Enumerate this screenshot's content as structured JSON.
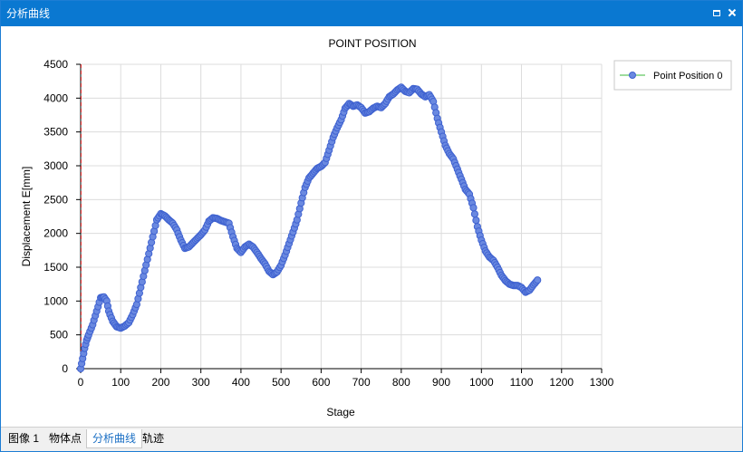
{
  "window": {
    "title": "分析曲线"
  },
  "tabs": [
    {
      "label": "图像 1",
      "active": false
    },
    {
      "label": "物体点",
      "active": false
    },
    {
      "label": "分析曲线",
      "active": true
    },
    {
      "label": "轨迹",
      "active": false
    }
  ],
  "chart_data": {
    "type": "scatter",
    "title": "POINT POSITION",
    "xlabel": "Stage",
    "ylabel": "Displacement E[mm]",
    "xlim": [
      0,
      1300
    ],
    "ylim": [
      0,
      4500
    ],
    "xticks": [
      0,
      100,
      200,
      300,
      400,
      500,
      600,
      700,
      800,
      900,
      1000,
      1100,
      1200,
      1300
    ],
    "yticks": [
      0,
      500,
      1000,
      1500,
      2000,
      2500,
      3000,
      3500,
      4000,
      4500
    ],
    "grid": true,
    "legend": "top-right",
    "series": [
      {
        "name": "Point Position 0",
        "color": "#3f62d0",
        "points": [
          [
            0,
            0
          ],
          [
            5,
            150
          ],
          [
            10,
            300
          ],
          [
            15,
            420
          ],
          [
            20,
            500
          ],
          [
            30,
            650
          ],
          [
            40,
            850
          ],
          [
            50,
            1050
          ],
          [
            58,
            1060
          ],
          [
            65,
            1000
          ],
          [
            70,
            850
          ],
          [
            80,
            700
          ],
          [
            90,
            620
          ],
          [
            100,
            600
          ],
          [
            110,
            630
          ],
          [
            120,
            680
          ],
          [
            130,
            800
          ],
          [
            140,
            950
          ],
          [
            150,
            1200
          ],
          [
            160,
            1450
          ],
          [
            170,
            1700
          ],
          [
            180,
            1950
          ],
          [
            190,
            2200
          ],
          [
            200,
            2290
          ],
          [
            210,
            2260
          ],
          [
            220,
            2200
          ],
          [
            230,
            2150
          ],
          [
            240,
            2050
          ],
          [
            250,
            1900
          ],
          [
            260,
            1780
          ],
          [
            270,
            1800
          ],
          [
            280,
            1860
          ],
          [
            290,
            1920
          ],
          [
            300,
            1980
          ],
          [
            310,
            2050
          ],
          [
            320,
            2180
          ],
          [
            330,
            2230
          ],
          [
            340,
            2220
          ],
          [
            350,
            2190
          ],
          [
            360,
            2170
          ],
          [
            370,
            2150
          ],
          [
            380,
            1950
          ],
          [
            390,
            1780
          ],
          [
            400,
            1720
          ],
          [
            410,
            1800
          ],
          [
            420,
            1840
          ],
          [
            430,
            1800
          ],
          [
            440,
            1720
          ],
          [
            450,
            1630
          ],
          [
            460,
            1550
          ],
          [
            470,
            1440
          ],
          [
            480,
            1390
          ],
          [
            490,
            1430
          ],
          [
            500,
            1530
          ],
          [
            510,
            1680
          ],
          [
            520,
            1850
          ],
          [
            530,
            2020
          ],
          [
            540,
            2200
          ],
          [
            550,
            2450
          ],
          [
            560,
            2680
          ],
          [
            570,
            2820
          ],
          [
            580,
            2890
          ],
          [
            590,
            2960
          ],
          [
            600,
            2990
          ],
          [
            610,
            3050
          ],
          [
            620,
            3230
          ],
          [
            630,
            3420
          ],
          [
            640,
            3560
          ],
          [
            650,
            3680
          ],
          [
            660,
            3850
          ],
          [
            670,
            3920
          ],
          [
            680,
            3880
          ],
          [
            690,
            3900
          ],
          [
            700,
            3860
          ],
          [
            710,
            3780
          ],
          [
            720,
            3800
          ],
          [
            730,
            3850
          ],
          [
            740,
            3880
          ],
          [
            750,
            3860
          ],
          [
            760,
            3920
          ],
          [
            770,
            4020
          ],
          [
            780,
            4060
          ],
          [
            790,
            4120
          ],
          [
            800,
            4160
          ],
          [
            810,
            4100
          ],
          [
            820,
            4080
          ],
          [
            830,
            4140
          ],
          [
            840,
            4130
          ],
          [
            850,
            4060
          ],
          [
            860,
            4020
          ],
          [
            870,
            4050
          ],
          [
            880,
            3950
          ],
          [
            890,
            3700
          ],
          [
            900,
            3500
          ],
          [
            910,
            3300
          ],
          [
            920,
            3180
          ],
          [
            930,
            3100
          ],
          [
            940,
            2950
          ],
          [
            950,
            2800
          ],
          [
            960,
            2650
          ],
          [
            970,
            2580
          ],
          [
            980,
            2380
          ],
          [
            990,
            2100
          ],
          [
            1000,
            1900
          ],
          [
            1010,
            1740
          ],
          [
            1020,
            1650
          ],
          [
            1030,
            1600
          ],
          [
            1040,
            1500
          ],
          [
            1050,
            1380
          ],
          [
            1060,
            1300
          ],
          [
            1070,
            1250
          ],
          [
            1080,
            1230
          ],
          [
            1090,
            1230
          ],
          [
            1100,
            1200
          ],
          [
            1110,
            1130
          ],
          [
            1120,
            1160
          ],
          [
            1130,
            1240
          ],
          [
            1140,
            1310
          ]
        ]
      }
    ]
  }
}
